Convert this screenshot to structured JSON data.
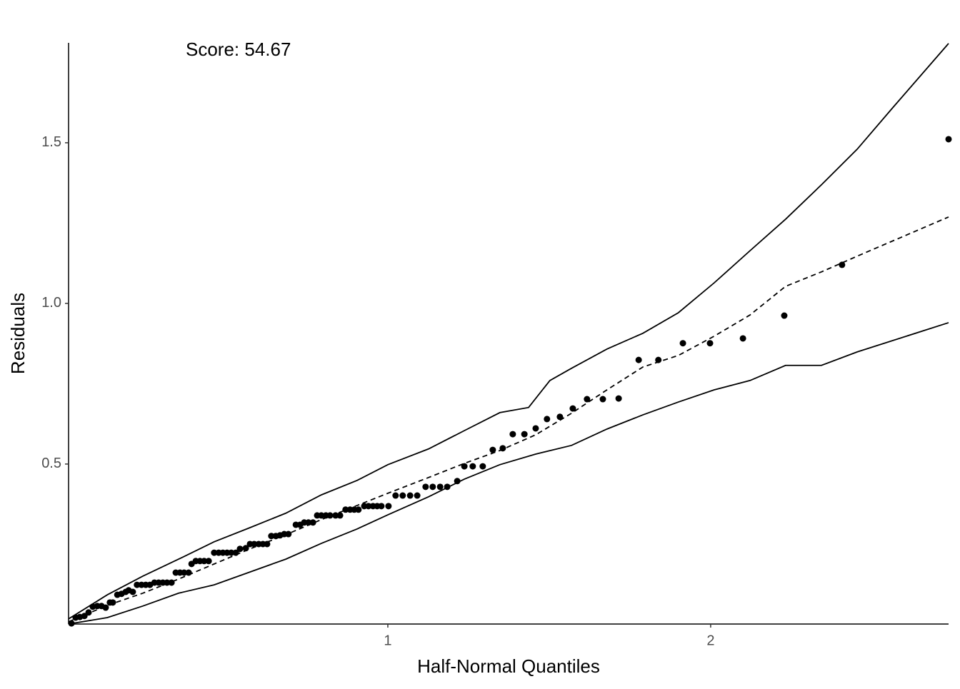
{
  "chart_data": {
    "type": "scatter",
    "annotation": "Score: 54.67",
    "xlabel": "Half-Normal Quantiles",
    "ylabel": "Residuals",
    "xlim": [
      0.011,
      2.737
    ],
    "ylim": [
      0.002,
      1.811
    ],
    "xticks": [
      1,
      2
    ],
    "yticks": [
      0.5,
      {
        "value": 1,
        "label": "1.0"
      },
      1.5
    ],
    "grid": false,
    "series": [
      {
        "type": "scatter",
        "color": "#000000",
        "x": [
          0.02,
          0.033,
          0.046,
          0.06,
          0.073,
          0.086,
          0.1,
          0.113,
          0.126,
          0.139,
          0.148,
          0.162,
          0.175,
          0.188,
          0.197,
          0.21,
          0.223,
          0.237,
          0.25,
          0.263,
          0.277,
          0.29,
          0.303,
          0.316,
          0.33,
          0.343,
          0.356,
          0.369,
          0.383,
          0.392,
          0.405,
          0.418,
          0.431,
          0.445,
          0.462,
          0.476,
          0.489,
          0.502,
          0.515,
          0.529,
          0.542,
          0.56,
          0.573,
          0.586,
          0.6,
          0.613,
          0.626,
          0.639,
          0.653,
          0.666,
          0.679,
          0.692,
          0.715,
          0.728,
          0.741,
          0.754,
          0.768,
          0.781,
          0.794,
          0.808,
          0.821,
          0.838,
          0.852,
          0.869,
          0.883,
          0.896,
          0.909,
          0.927,
          0.94,
          0.954,
          0.967,
          0.98,
          1.002,
          1.024,
          1.046,
          1.069,
          1.091,
          1.117,
          1.139,
          1.162,
          1.184,
          1.215,
          1.237,
          1.263,
          1.294,
          1.325,
          1.356,
          1.387,
          1.423,
          1.458,
          1.493,
          1.533,
          1.573,
          1.617,
          1.666,
          1.715,
          1.777,
          1.838,
          1.914,
          1.998,
          2.1,
          2.228,
          2.407,
          2.737
        ],
        "values": [
          0.004,
          0.022,
          0.024,
          0.027,
          0.038,
          0.056,
          0.058,
          0.058,
          0.053,
          0.069,
          0.069,
          0.093,
          0.096,
          0.102,
          0.107,
          0.102,
          0.124,
          0.124,
          0.124,
          0.124,
          0.131,
          0.131,
          0.131,
          0.131,
          0.131,
          0.162,
          0.162,
          0.162,
          0.162,
          0.189,
          0.198,
          0.198,
          0.198,
          0.198,
          0.224,
          0.224,
          0.224,
          0.224,
          0.224,
          0.224,
          0.236,
          0.238,
          0.251,
          0.251,
          0.251,
          0.251,
          0.251,
          0.276,
          0.276,
          0.278,
          0.282,
          0.282,
          0.311,
          0.311,
          0.318,
          0.318,
          0.318,
          0.34,
          0.34,
          0.34,
          0.34,
          0.34,
          0.34,
          0.358,
          0.358,
          0.358,
          0.358,
          0.369,
          0.369,
          0.369,
          0.369,
          0.369,
          0.369,
          0.402,
          0.402,
          0.402,
          0.402,
          0.429,
          0.429,
          0.429,
          0.429,
          0.447,
          0.493,
          0.493,
          0.493,
          0.544,
          0.549,
          0.593,
          0.593,
          0.611,
          0.64,
          0.647,
          0.673,
          0.702,
          0.702,
          0.704,
          0.824,
          0.824,
          0.876,
          0.876,
          0.891,
          0.962,
          1.12,
          1.511
        ]
      },
      {
        "type": "line",
        "dash": false,
        "color": "#000000",
        "x": [
          0.011,
          0.131,
          0.241,
          0.352,
          0.462,
          0.573,
          0.684,
          0.794,
          0.905,
          1.0,
          1.126,
          1.237,
          1.347,
          1.436,
          1.502,
          1.569,
          1.679,
          1.79,
          1.9,
          2.011,
          2.122,
          2.232,
          2.343,
          2.454,
          2.564,
          2.737
        ],
        "values": [
          0.018,
          0.093,
          0.151,
          0.204,
          0.258,
          0.302,
          0.347,
          0.404,
          0.449,
          0.498,
          0.547,
          0.604,
          0.66,
          0.676,
          0.76,
          0.798,
          0.858,
          0.907,
          0.971,
          1.064,
          1.164,
          1.262,
          1.369,
          1.48,
          1.609,
          1.809
        ]
      },
      {
        "type": "line",
        "dash": true,
        "color": "#000000",
        "x": [
          0.011,
          0.131,
          0.241,
          0.352,
          0.462,
          0.573,
          0.684,
          0.794,
          0.905,
          1.0,
          1.126,
          1.237,
          1.347,
          1.458,
          1.569,
          1.679,
          1.79,
          1.9,
          2.011,
          2.122,
          2.232,
          2.343,
          2.454,
          2.737
        ],
        "values": [
          0.009,
          0.06,
          0.098,
          0.142,
          0.189,
          0.236,
          0.28,
          0.327,
          0.371,
          0.409,
          0.458,
          0.502,
          0.542,
          0.591,
          0.658,
          0.731,
          0.802,
          0.838,
          0.898,
          0.964,
          1.053,
          1.098,
          1.147,
          1.269
        ]
      },
      {
        "type": "line",
        "dash": false,
        "color": "#000000",
        "x": [
          0.011,
          0.131,
          0.241,
          0.352,
          0.462,
          0.573,
          0.684,
          0.794,
          0.905,
          1.0,
          1.126,
          1.237,
          1.347,
          1.458,
          1.569,
          1.679,
          1.79,
          1.9,
          2.011,
          2.122,
          2.232,
          2.343,
          2.454,
          2.737
        ],
        "values": [
          0.002,
          0.022,
          0.058,
          0.098,
          0.124,
          0.164,
          0.204,
          0.253,
          0.298,
          0.342,
          0.398,
          0.453,
          0.498,
          0.531,
          0.558,
          0.609,
          0.653,
          0.693,
          0.731,
          0.76,
          0.807,
          0.807,
          0.849,
          0.94
        ]
      }
    ]
  }
}
